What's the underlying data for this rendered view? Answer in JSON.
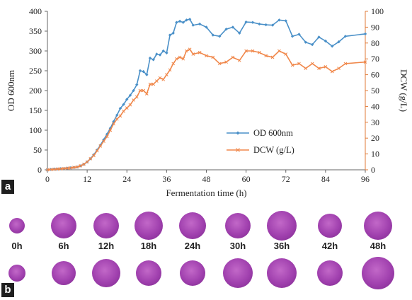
{
  "panels": {
    "a_label": "a",
    "b_label": "b"
  },
  "chart_data": {
    "type": "line",
    "xlabel": "Fermentation time (h)",
    "ylabel_left": "OD 600nm",
    "ylabel_right": "DCW (g/L)",
    "xlim": [
      0,
      96
    ],
    "ylim_left": [
      0,
      400
    ],
    "ylim_right": [
      0,
      100
    ],
    "x_ticks": [
      0,
      12,
      24,
      36,
      48,
      60,
      72,
      84,
      96
    ],
    "y_ticks_left": [
      0,
      50,
      100,
      150,
      200,
      250,
      300,
      350,
      400
    ],
    "y_ticks_right": [
      0,
      10,
      20,
      30,
      40,
      50,
      60,
      70,
      80,
      90,
      100
    ],
    "grid": false,
    "legend_position": "center-right",
    "series": [
      {
        "name": "OD 600nm",
        "axis": "left",
        "color": "#4a90c8",
        "marker": "diamond",
        "x": [
          0,
          1,
          2,
          3,
          4,
          5,
          6,
          7,
          8,
          9,
          10,
          11,
          12,
          13,
          14,
          15,
          16,
          17,
          18,
          19,
          20,
          21,
          22,
          23,
          24,
          25,
          26,
          27,
          28,
          29,
          30,
          31,
          32,
          33,
          34,
          35,
          36,
          37,
          38,
          39,
          40,
          41,
          42,
          43,
          44,
          46,
          48,
          50,
          52,
          54,
          56,
          58,
          60,
          62,
          64,
          66,
          68,
          70,
          72,
          74,
          76,
          78,
          80,
          82,
          84,
          86,
          88,
          90,
          96
        ],
        "y": [
          0,
          1,
          2,
          2,
          3,
          3,
          4,
          5,
          6,
          7,
          10,
          14,
          20,
          28,
          38,
          50,
          62,
          76,
          90,
          105,
          122,
          138,
          155,
          165,
          178,
          188,
          200,
          215,
          250,
          248,
          240,
          282,
          278,
          292,
          290,
          300,
          295,
          340,
          345,
          372,
          375,
          372,
          378,
          380,
          365,
          368,
          360,
          340,
          337,
          355,
          360,
          345,
          373,
          372,
          368,
          366,
          365,
          378,
          376,
          337,
          342,
          322,
          316,
          335,
          325,
          312,
          323,
          337,
          343
        ]
      },
      {
        "name": "DCW (g/L)",
        "axis": "right",
        "color": "#f0874a",
        "marker": "x",
        "x": [
          0,
          1,
          2,
          3,
          4,
          5,
          6,
          7,
          8,
          9,
          10,
          11,
          12,
          13,
          14,
          15,
          16,
          17,
          18,
          19,
          20,
          21,
          22,
          23,
          24,
          25,
          26,
          27,
          28,
          29,
          30,
          31,
          32,
          33,
          34,
          35,
          36,
          37,
          38,
          39,
          40,
          41,
          42,
          43,
          44,
          46,
          48,
          50,
          52,
          54,
          56,
          58,
          60,
          62,
          64,
          66,
          68,
          70,
          72,
          74,
          76,
          78,
          80,
          82,
          84,
          86,
          88,
          90,
          96
        ],
        "y": [
          0,
          0.2,
          0.3,
          0.5,
          0.6,
          0.8,
          1,
          1.2,
          1.5,
          1.8,
          2.5,
          3.5,
          5,
          7,
          9,
          12,
          15,
          18,
          21,
          25,
          29,
          32,
          34,
          37,
          39,
          41,
          44,
          46,
          50,
          50,
          48,
          54,
          54,
          56,
          58,
          57,
          60,
          63,
          67,
          70,
          71,
          70,
          75,
          76,
          73,
          74,
          72,
          71,
          67,
          68,
          71,
          69,
          75,
          75,
          74,
          72,
          71,
          75,
          73,
          66,
          67,
          64,
          67,
          64,
          65,
          62,
          64,
          67,
          68
        ]
      }
    ]
  },
  "colonies": {
    "labels": [
      "0h",
      "6h",
      "12h",
      "18h",
      "24h",
      "30h",
      "36h",
      "42h",
      "48h"
    ]
  }
}
